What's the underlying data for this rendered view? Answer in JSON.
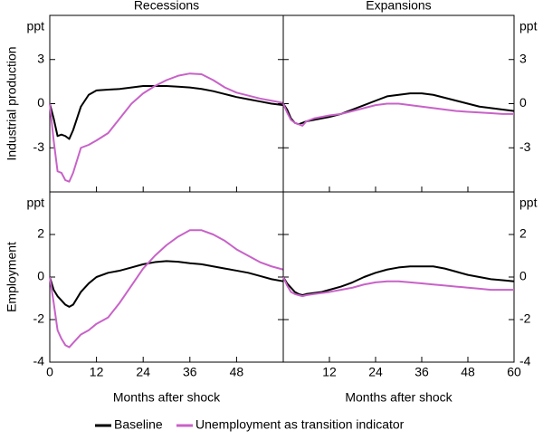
{
  "chart_data": [
    {
      "type": "line",
      "title": "Recessions",
      "ylabel": "Industrial production",
      "y_unit": "ppt",
      "x": [
        0,
        1,
        2,
        3,
        4,
        5,
        6,
        8,
        10,
        12,
        15,
        18,
        21,
        24,
        27,
        30,
        33,
        36,
        39,
        42,
        45,
        48,
        51,
        54,
        57,
        60
      ],
      "xlim": [
        0,
        60
      ],
      "xticks": [
        0,
        12,
        24,
        36,
        48
      ],
      "ylim": [
        -6,
        6
      ],
      "yticks": [
        3,
        0,
        -3
      ],
      "series": [
        {
          "name": "Baseline",
          "color": "#000000",
          "values": [
            0,
            -1.0,
            -2.2,
            -2.1,
            -2.2,
            -2.4,
            -1.8,
            -0.2,
            0.6,
            0.9,
            0.95,
            1.0,
            1.1,
            1.2,
            1.2,
            1.2,
            1.15,
            1.1,
            1.0,
            0.85,
            0.65,
            0.45,
            0.3,
            0.15,
            0.0,
            -0.1
          ]
        },
        {
          "name": "Unemployment as transition indicator",
          "color": "#c862c8",
          "values": [
            0,
            -2.5,
            -4.6,
            -4.7,
            -5.2,
            -5.3,
            -4.7,
            -3.0,
            -2.8,
            -2.5,
            -2.0,
            -1.0,
            0.0,
            0.7,
            1.2,
            1.6,
            1.9,
            2.05,
            2.0,
            1.6,
            1.1,
            0.75,
            0.55,
            0.35,
            0.2,
            0.05
          ]
        }
      ]
    },
    {
      "type": "line",
      "title": "Expansions",
      "y_unit": "ppt",
      "x": [
        0,
        1,
        2,
        3,
        4,
        5,
        6,
        8,
        10,
        12,
        15,
        18,
        21,
        24,
        27,
        30,
        33,
        36,
        39,
        42,
        45,
        48,
        51,
        54,
        57,
        60
      ],
      "xlim": [
        0,
        60
      ],
      "xticks": [
        12,
        24,
        36,
        48,
        60
      ],
      "ylim": [
        -6,
        6
      ],
      "yticks": [
        3,
        0,
        -3
      ],
      "series": [
        {
          "name": "Baseline",
          "color": "#000000",
          "values": [
            0,
            -0.4,
            -1.0,
            -1.3,
            -1.4,
            -1.3,
            -1.2,
            -1.1,
            -1.0,
            -0.9,
            -0.7,
            -0.4,
            -0.1,
            0.2,
            0.5,
            0.6,
            0.7,
            0.7,
            0.6,
            0.4,
            0.2,
            0.0,
            -0.2,
            -0.3,
            -0.4,
            -0.5
          ]
        },
        {
          "name": "Unemployment as transition indicator",
          "color": "#c862c8",
          "values": [
            0,
            -0.6,
            -1.1,
            -1.3,
            -1.4,
            -1.5,
            -1.2,
            -1.0,
            -0.9,
            -0.8,
            -0.7,
            -0.5,
            -0.3,
            -0.1,
            0.0,
            0.0,
            -0.1,
            -0.2,
            -0.3,
            -0.4,
            -0.5,
            -0.55,
            -0.6,
            -0.65,
            -0.7,
            -0.7
          ]
        }
      ]
    },
    {
      "type": "line",
      "ylabel": "Employment",
      "xlabel": "Months after shock",
      "y_unit": "ppt",
      "x": [
        0,
        1,
        2,
        3,
        4,
        5,
        6,
        8,
        10,
        12,
        15,
        18,
        21,
        24,
        27,
        30,
        33,
        36,
        39,
        42,
        45,
        48,
        51,
        54,
        57,
        60
      ],
      "xlim": [
        0,
        60
      ],
      "xticks": [
        0,
        12,
        24,
        36,
        48
      ],
      "ylim": [
        -4,
        4
      ],
      "yticks": [
        2,
        0,
        -2,
        -4
      ],
      "series": [
        {
          "name": "Baseline",
          "color": "#000000",
          "values": [
            0,
            -0.6,
            -0.9,
            -1.1,
            -1.3,
            -1.4,
            -1.3,
            -0.7,
            -0.3,
            0.0,
            0.2,
            0.3,
            0.45,
            0.6,
            0.7,
            0.75,
            0.72,
            0.65,
            0.6,
            0.5,
            0.4,
            0.3,
            0.2,
            0.05,
            -0.1,
            -0.2
          ]
        },
        {
          "name": "Unemployment as transition indicator",
          "color": "#c862c8",
          "values": [
            0,
            -1.2,
            -2.5,
            -2.9,
            -3.2,
            -3.3,
            -3.1,
            -2.7,
            -2.5,
            -2.2,
            -1.9,
            -1.2,
            -0.4,
            0.4,
            1.0,
            1.5,
            1.9,
            2.2,
            2.2,
            2.0,
            1.7,
            1.3,
            1.0,
            0.7,
            0.5,
            0.35
          ]
        }
      ]
    },
    {
      "type": "line",
      "xlabel": "Months after shock",
      "y_unit": "ppt",
      "x": [
        0,
        1,
        2,
        3,
        4,
        5,
        6,
        8,
        10,
        12,
        15,
        18,
        21,
        24,
        27,
        30,
        33,
        36,
        39,
        42,
        45,
        48,
        51,
        54,
        57,
        60
      ],
      "xlim": [
        0,
        60
      ],
      "xticks": [
        12,
        24,
        36,
        48,
        60
      ],
      "ylim": [
        -4,
        4
      ],
      "yticks": [
        2,
        0,
        -2,
        -4
      ],
      "series": [
        {
          "name": "Baseline",
          "color": "#000000",
          "values": [
            0,
            -0.3,
            -0.5,
            -0.7,
            -0.8,
            -0.85,
            -0.8,
            -0.75,
            -0.7,
            -0.6,
            -0.45,
            -0.25,
            0.0,
            0.2,
            0.35,
            0.45,
            0.5,
            0.5,
            0.5,
            0.4,
            0.25,
            0.1,
            0.0,
            -0.1,
            -0.15,
            -0.2
          ]
        },
        {
          "name": "Unemployment as transition indicator",
          "color": "#c862c8",
          "values": [
            0,
            -0.4,
            -0.7,
            -0.8,
            -0.85,
            -0.9,
            -0.85,
            -0.8,
            -0.75,
            -0.7,
            -0.6,
            -0.5,
            -0.35,
            -0.25,
            -0.2,
            -0.2,
            -0.25,
            -0.3,
            -0.35,
            -0.4,
            -0.45,
            -0.5,
            -0.55,
            -0.6,
            -0.6,
            -0.6
          ]
        }
      ]
    }
  ]
}
